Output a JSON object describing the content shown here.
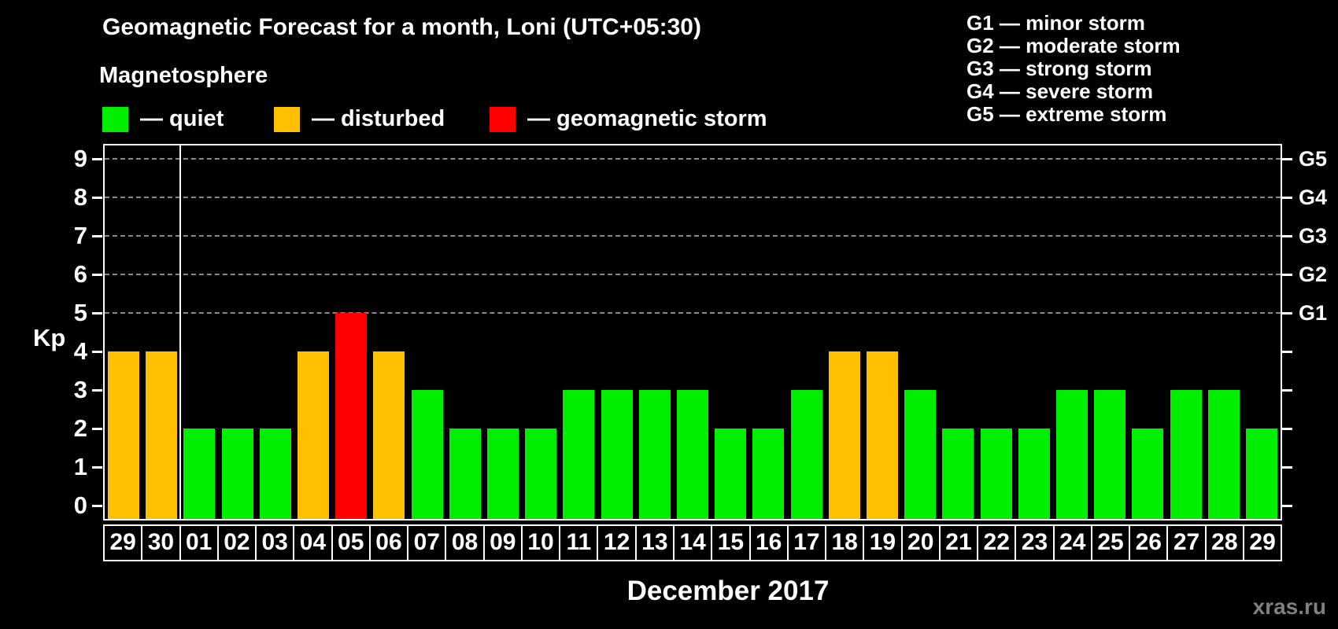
{
  "header": {
    "title": "Geomagnetic Forecast for a month, Loni (UTC+05:30)",
    "subtitle": "Magnetosphere"
  },
  "legend": {
    "items": [
      {
        "id": "quiet",
        "label": "— quiet",
        "color": "#00ee00"
      },
      {
        "id": "disturbed",
        "label": "— disturbed",
        "color": "#ffc000"
      },
      {
        "id": "storm",
        "label": "— geomagnetic storm",
        "color": "#ff0000"
      }
    ]
  },
  "g_scale_legend": {
    "lines": [
      "G1 — minor storm",
      "G2 — moderate storm",
      "G3 — strong storm",
      "G4 — severe storm",
      "G5 — extreme storm"
    ]
  },
  "watermark": "xras.ru",
  "chart_data": {
    "type": "bar",
    "title": "Geomagnetic Forecast for a month, Loni (UTC+05:30)",
    "subtitle": "Magnetosphere",
    "xlabel": "December 2017",
    "ylabel": "Kp",
    "ylim": [
      0,
      9
    ],
    "yticks_left": [
      0,
      1,
      2,
      3,
      4,
      5,
      6,
      7,
      8,
      9
    ],
    "gridlines_at": [
      5,
      6,
      7,
      8,
      9
    ],
    "grid_style": "horizontal dashed gray at storm levels",
    "legend_position": "top-left",
    "right_axis_labels": {
      "5": "G1",
      "6": "G2",
      "7": "G3",
      "8": "G4",
      "9": "G5"
    },
    "categories": [
      "29",
      "30",
      "01",
      "02",
      "03",
      "04",
      "05",
      "06",
      "07",
      "08",
      "09",
      "10",
      "11",
      "12",
      "13",
      "14",
      "15",
      "16",
      "17",
      "18",
      "19",
      "20",
      "21",
      "22",
      "23",
      "24",
      "25",
      "26",
      "27",
      "28",
      "29"
    ],
    "values": [
      4,
      4,
      2,
      2,
      2,
      4,
      5,
      4,
      3,
      2,
      2,
      2,
      3,
      3,
      3,
      3,
      2,
      2,
      3,
      4,
      4,
      3,
      2,
      2,
      2,
      3,
      3,
      2,
      3,
      3,
      2
    ],
    "statuses": [
      "disturbed",
      "disturbed",
      "quiet",
      "quiet",
      "quiet",
      "disturbed",
      "storm",
      "disturbed",
      "quiet",
      "quiet",
      "quiet",
      "quiet",
      "quiet",
      "quiet",
      "quiet",
      "quiet",
      "quiet",
      "quiet",
      "quiet",
      "disturbed",
      "disturbed",
      "quiet",
      "quiet",
      "quiet",
      "quiet",
      "quiet",
      "quiet",
      "quiet",
      "quiet",
      "quiet",
      "quiet"
    ],
    "status_colors": {
      "quiet": "#00ee00",
      "disturbed": "#ffc000",
      "storm": "#ff0000"
    },
    "previous_month_days_count": 2
  },
  "colors": {
    "background": "#000000",
    "axis": "#ffffff",
    "gridline": "#999999",
    "text": "#ffffff",
    "watermark": "#808080"
  }
}
